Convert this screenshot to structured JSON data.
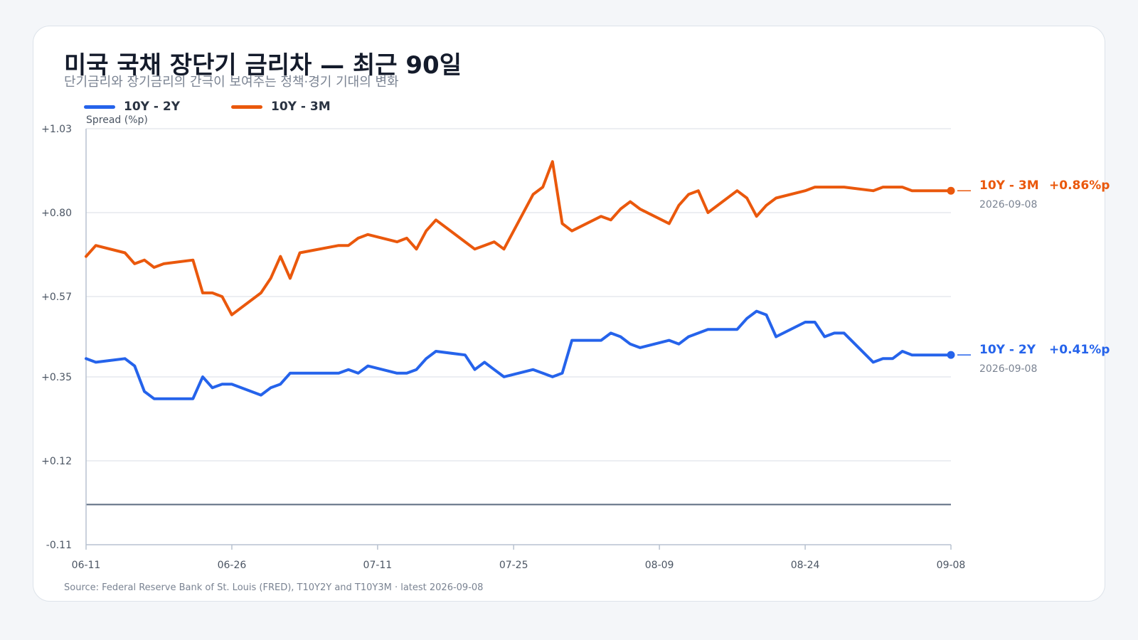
{
  "title": "미국 국채 장단기 금리차 — 최근 90일",
  "subtitle": "단기금리와 장기금리의 간극이 보여주는 정책·경기 기대의 변화",
  "source": "Source: Federal Reserve Bank of St. Louis (FRED), T10Y2Y and T10Y3M · latest 2026-09-08",
  "colors": {
    "10Y-2Y": "#2563eb",
    "10Y-3M": "#ea580c",
    "zero_line": "#5b6b80"
  },
  "chart_data": {
    "type": "line",
    "ylabel": "Spread (%p)",
    "ylim": [
      -0.11,
      1.03
    ],
    "yticks": [
      "+1.03",
      "+0.80",
      "+0.57",
      "+0.35",
      "+0.12",
      "-0.11"
    ],
    "xlim": [
      "2026-06-11",
      "2026-09-08"
    ],
    "xticks": [
      "06-11",
      "06-26",
      "07-11",
      "07-25",
      "08-09",
      "08-24",
      "09-08"
    ],
    "grid": "horizontal",
    "zero_line": true,
    "legend": "top-left",
    "series": [
      {
        "name": "10Y - 2Y",
        "end_label": "10Y - 2Y",
        "end_value": "+0.41%p",
        "end_date": "2026-09-08",
        "x": [
          "2026-06-11",
          "2026-06-12",
          "2026-06-15",
          "2026-06-16",
          "2026-06-17",
          "2026-06-18",
          "2026-06-19",
          "2026-06-22",
          "2026-06-23",
          "2026-06-24",
          "2026-06-25",
          "2026-06-26",
          "2026-06-29",
          "2026-06-30",
          "2026-07-01",
          "2026-07-02",
          "2026-07-03",
          "2026-07-07",
          "2026-07-08",
          "2026-07-09",
          "2026-07-10",
          "2026-07-13",
          "2026-07-14",
          "2026-07-15",
          "2026-07-16",
          "2026-07-17",
          "2026-07-20",
          "2026-07-21",
          "2026-07-22",
          "2026-07-23",
          "2026-07-24",
          "2026-07-27",
          "2026-07-28",
          "2026-07-29",
          "2026-07-30",
          "2026-07-31",
          "2026-08-03",
          "2026-08-04",
          "2026-08-05",
          "2026-08-06",
          "2026-08-07",
          "2026-08-10",
          "2026-08-11",
          "2026-08-12",
          "2026-08-13",
          "2026-08-14",
          "2026-08-17",
          "2026-08-18",
          "2026-08-19",
          "2026-08-20",
          "2026-08-21",
          "2026-08-24",
          "2026-08-25",
          "2026-08-26",
          "2026-08-27",
          "2026-08-28",
          "2026-08-31",
          "2026-09-01",
          "2026-09-02",
          "2026-09-03",
          "2026-09-04",
          "2026-09-08"
        ],
        "values": [
          0.4,
          0.39,
          0.4,
          0.38,
          0.31,
          0.29,
          0.29,
          0.29,
          0.35,
          0.32,
          0.33,
          0.33,
          0.3,
          0.32,
          0.33,
          0.36,
          0.36,
          0.36,
          0.37,
          0.36,
          0.38,
          0.36,
          0.36,
          0.37,
          0.4,
          0.42,
          0.41,
          0.37,
          0.39,
          0.37,
          0.35,
          0.37,
          0.36,
          0.35,
          0.36,
          0.45,
          0.45,
          0.47,
          0.46,
          0.44,
          0.43,
          0.45,
          0.44,
          0.46,
          0.47,
          0.48,
          0.48,
          0.51,
          0.53,
          0.52,
          0.46,
          0.5,
          0.5,
          0.46,
          0.47,
          0.47,
          0.39,
          0.4,
          0.4,
          0.42,
          0.41,
          0.41
        ]
      },
      {
        "name": "10Y - 3M",
        "end_label": "10Y - 3M",
        "end_value": "+0.86%p",
        "end_date": "2026-09-08",
        "x": [
          "2026-06-11",
          "2026-06-12",
          "2026-06-15",
          "2026-06-16",
          "2026-06-17",
          "2026-06-18",
          "2026-06-19",
          "2026-06-22",
          "2026-06-23",
          "2026-06-24",
          "2026-06-25",
          "2026-06-26",
          "2026-06-29",
          "2026-06-30",
          "2026-07-01",
          "2026-07-02",
          "2026-07-03",
          "2026-07-07",
          "2026-07-08",
          "2026-07-09",
          "2026-07-10",
          "2026-07-13",
          "2026-07-14",
          "2026-07-15",
          "2026-07-16",
          "2026-07-17",
          "2026-07-20",
          "2026-07-21",
          "2026-07-22",
          "2026-07-23",
          "2026-07-24",
          "2026-07-27",
          "2026-07-28",
          "2026-07-29",
          "2026-07-30",
          "2026-07-31",
          "2026-08-03",
          "2026-08-04",
          "2026-08-05",
          "2026-08-06",
          "2026-08-07",
          "2026-08-10",
          "2026-08-11",
          "2026-08-12",
          "2026-08-13",
          "2026-08-14",
          "2026-08-17",
          "2026-08-18",
          "2026-08-19",
          "2026-08-20",
          "2026-08-21",
          "2026-08-24",
          "2026-08-25",
          "2026-08-26",
          "2026-08-27",
          "2026-08-28",
          "2026-08-31",
          "2026-09-01",
          "2026-09-02",
          "2026-09-03",
          "2026-09-04",
          "2026-09-08"
        ],
        "values": [
          0.68,
          0.71,
          0.69,
          0.66,
          0.67,
          0.65,
          0.66,
          0.67,
          0.58,
          0.58,
          0.57,
          0.52,
          0.58,
          0.62,
          0.68,
          0.62,
          0.69,
          0.71,
          0.71,
          0.73,
          0.74,
          0.72,
          0.73,
          0.7,
          0.75,
          0.78,
          0.72,
          0.7,
          0.71,
          0.72,
          0.7,
          0.85,
          0.87,
          0.94,
          0.77,
          0.75,
          0.79,
          0.78,
          0.81,
          0.83,
          0.81,
          0.77,
          0.82,
          0.85,
          0.86,
          0.8,
          0.86,
          0.84,
          0.79,
          0.82,
          0.84,
          0.86,
          0.87,
          0.87,
          0.87,
          0.87,
          0.86,
          0.87,
          0.87,
          0.87,
          0.86,
          0.86
        ]
      }
    ]
  }
}
